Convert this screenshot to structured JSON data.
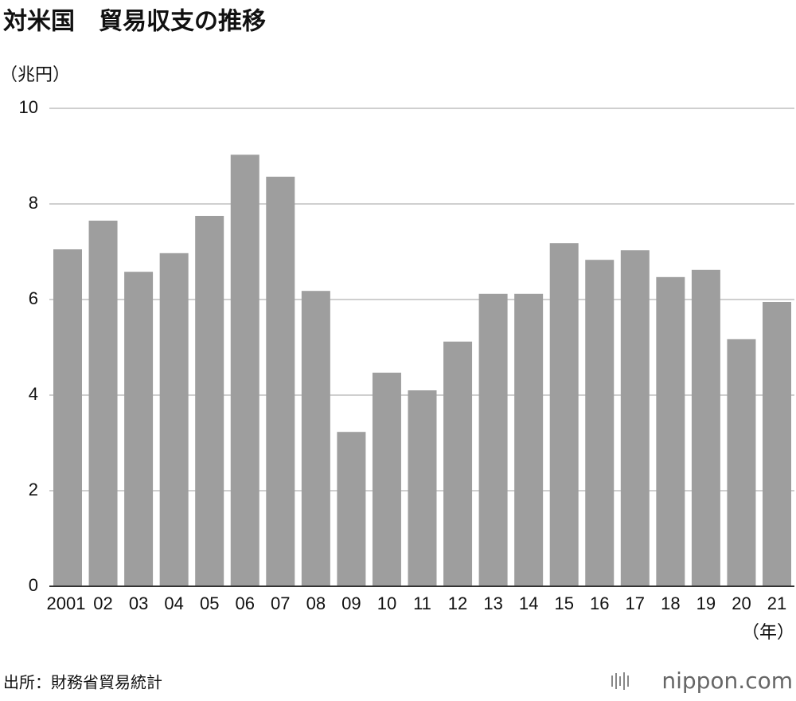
{
  "chart_data": {
    "type": "bar",
    "title": "対米国　貿易収支の推移",
    "y_unit": "（兆円）",
    "x_unit": "（年）",
    "source": "出所：財務省貿易統計",
    "logo": "nippon.com",
    "categories": [
      "2001",
      "02",
      "03",
      "04",
      "05",
      "06",
      "07",
      "08",
      "09",
      "10",
      "11",
      "12",
      "13",
      "14",
      "15",
      "16",
      "17",
      "18",
      "19",
      "20",
      "21"
    ],
    "values": [
      7.05,
      7.65,
      6.58,
      6.97,
      7.75,
      9.03,
      8.57,
      6.18,
      3.23,
      4.47,
      4.1,
      5.12,
      6.12,
      6.12,
      7.18,
      6.83,
      7.03,
      6.47,
      6.62,
      5.17,
      5.95
    ],
    "color": "#9e9e9e",
    "ylim": [
      0,
      10
    ],
    "yticks": [
      0,
      2,
      4,
      6,
      8,
      10
    ],
    "grid": true
  }
}
